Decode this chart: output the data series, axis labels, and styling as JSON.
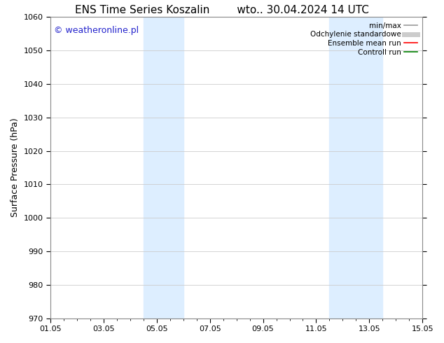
{
  "title_left": "ENS Time Series Koszalin",
  "title_right": "wto.. 30.04.2024 14 UTC",
  "ylabel": "Surface Pressure (hPa)",
  "ylim": [
    970,
    1060
  ],
  "yticks": [
    970,
    980,
    990,
    1000,
    1010,
    1020,
    1030,
    1040,
    1050,
    1060
  ],
  "xtick_labels": [
    "01.05",
    "03.05",
    "05.05",
    "07.05",
    "09.05",
    "11.05",
    "13.05",
    "15.05"
  ],
  "xtick_positions": [
    0,
    2,
    4,
    6,
    8,
    10,
    12,
    14
  ],
  "xlim": [
    0,
    14
  ],
  "shaded_bands": [
    {
      "x_start": 3.5,
      "x_end": 5.0
    },
    {
      "x_start": 10.5,
      "x_end": 12.5
    }
  ],
  "shade_color": "#ddeeff",
  "watermark": "© weatheronline.pl",
  "watermark_color": "#2222cc",
  "background_color": "#ffffff",
  "grid_color": "#cccccc",
  "legend_items": [
    {
      "label": "min/max",
      "color": "#999999",
      "lw": 1.2,
      "ls": "-"
    },
    {
      "label": "Odchylenie standardowe",
      "color": "#cccccc",
      "lw": 5,
      "ls": "-"
    },
    {
      "label": "Ensemble mean run",
      "color": "#ff0000",
      "lw": 1.2,
      "ls": "-"
    },
    {
      "label": "Controll run",
      "color": "#008000",
      "lw": 1.2,
      "ls": "-"
    }
  ],
  "title_fontsize": 11,
  "axis_label_fontsize": 9,
  "tick_fontsize": 8,
  "legend_fontsize": 7.5,
  "watermark_fontsize": 9
}
